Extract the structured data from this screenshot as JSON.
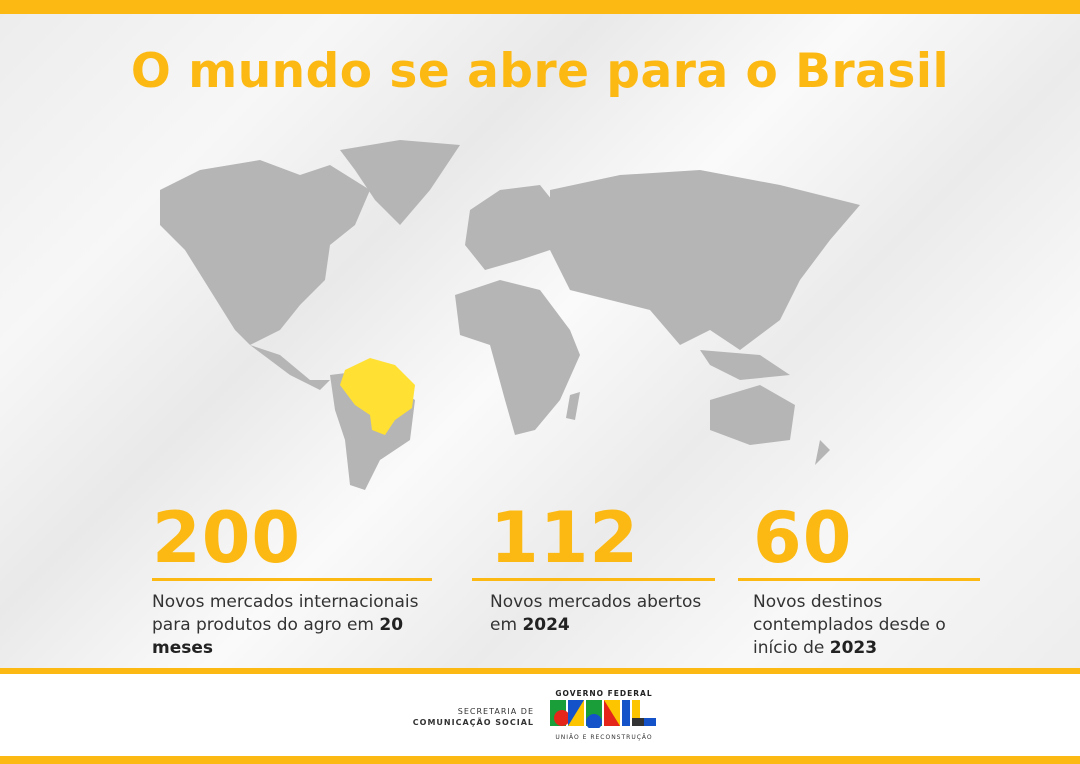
{
  "colors": {
    "accent": "#FDB913",
    "map_gray": "#b5b5b5",
    "brazil": "#FFE033"
  },
  "title": "O mundo se abre para o Brasil",
  "stats": [
    {
      "number": "200",
      "desc_plain": "Novos mercados internacionais para produtos do agro em",
      "desc_bold": "20 meses"
    },
    {
      "number": "112",
      "desc_plain": "Novos mercados abertos em",
      "desc_bold": "2024"
    },
    {
      "number": "60",
      "desc_plain": "Novos destinos contemplados desde o início de",
      "desc_bold": "2023"
    }
  ],
  "footer": {
    "secom_line1": "SECRETARIA DE",
    "secom_line2": "COMUNICAÇÃO SOCIAL",
    "gov_label": "GOVERNO FEDERAL",
    "logo_word": "BRASIL",
    "slogan": "UNIÃO E RECONSTRUÇÃO"
  }
}
